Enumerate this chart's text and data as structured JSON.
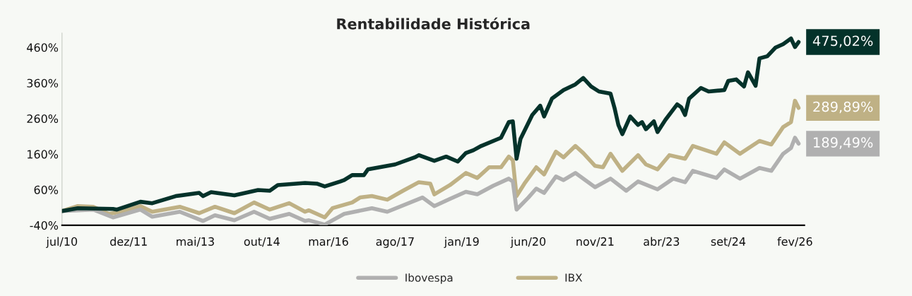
{
  "chart_data": {
    "type": "line",
    "title": "Rentabilidade Histórica",
    "xlim": [
      "2010-07",
      "2026-04-15"
    ],
    "ylim": [
      -40,
      500
    ],
    "xticks": [
      {
        "value": "2010-07",
        "label": "jul/10"
      },
      {
        "value": "2011-12",
        "label": "dez/11"
      },
      {
        "value": "2013-05",
        "label": "mai/13"
      },
      {
        "value": "2014-10",
        "label": "out/14"
      },
      {
        "value": "2016-03",
        "label": "mar/16"
      },
      {
        "value": "2017-08",
        "label": "ago/17"
      },
      {
        "value": "2019-01",
        "label": "jan/19"
      },
      {
        "value": "2020-06",
        "label": "jun/20"
      },
      {
        "value": "2021-11",
        "label": "nov/21"
      },
      {
        "value": "2023-04",
        "label": "abr/23"
      },
      {
        "value": "2024-09",
        "label": "set/24"
      },
      {
        "value": "2026-02",
        "label": "fev/26"
      }
    ],
    "yticks": [
      {
        "value": -40,
        "label": "-40%"
      },
      {
        "value": 60,
        "label": "60%"
      },
      {
        "value": 160,
        "label": "160%"
      },
      {
        "value": 260,
        "label": "260%"
      },
      {
        "value": 360,
        "label": "360%"
      },
      {
        "value": 460,
        "label": "460%"
      }
    ],
    "grid": false,
    "legend": "bottom",
    "marker": "none",
    "line_style": "solid",
    "series": [
      {
        "color": "#04322a",
        "x": [
          "2010-07",
          "2010-11",
          "2011-08",
          "2011-09",
          "2012-03",
          "2012-06",
          "2012-12",
          "2013-06",
          "2013-07",
          "2013-09",
          "2014-03",
          "2014-09",
          "2014-12",
          "2015-02",
          "2015-09",
          "2015-12",
          "2016-02",
          "2016-06",
          "2016-07",
          "2016-09",
          "2016-12",
          "2017-01",
          "2017-08",
          "2018-01",
          "2018-02",
          "2018-06",
          "2018-09",
          "2018-12",
          "2019-02",
          "2019-04",
          "2019-06",
          "2019-11",
          "2020-01",
          "2020-02",
          "2020-03",
          "2020-04",
          "2020-07",
          "2020-09",
          "2020-10",
          "2020-12",
          "2021-03",
          "2021-06",
          "2021-08",
          "2021-10",
          "2021-12",
          "2022-03",
          "2022-04",
          "2022-05",
          "2022-06",
          "2022-08",
          "2022-10",
          "2022-11",
          "2022-12",
          "2023-02",
          "2023-03",
          "2023-05",
          "2023-08",
          "2023-09",
          "2023-10",
          "2023-11",
          "2024-02",
          "2024-04",
          "2024-08",
          "2024-09",
          "2024-11",
          "2025-01",
          "2025-02",
          "2025-04",
          "2025-05",
          "2025-07",
          "2025-09",
          "2025-11",
          "2026-01",
          "2026-02",
          "2026-03"
        ],
        "values": [
          0,
          8,
          6,
          4,
          26,
          22,
          42,
          51,
          42,
          53,
          44,
          59,
          57,
          73,
          79,
          77,
          69,
          83,
          87,
          101,
          101,
          117,
          131,
          151,
          157,
          141,
          153,
          139,
          163,
          171,
          183,
          206,
          250,
          252,
          147,
          203,
          270,
          296,
          266,
          316,
          340,
          356,
          374,
          350,
          336,
          330,
          290,
          242,
          216,
          266,
          242,
          250,
          230,
          252,
          222,
          256,
          300,
          292,
          270,
          316,
          346,
          336,
          340,
          366,
          370,
          350,
          390,
          352,
          429,
          435,
          459,
          469,
          485,
          461,
          475.02
        ],
        "value_labels": [
          null,
          null,
          null,
          null,
          null,
          null,
          null,
          null,
          null,
          null,
          null,
          null,
          null,
          null,
          null,
          null,
          null,
          null,
          null,
          null,
          null,
          null,
          null,
          null,
          null,
          null,
          null,
          null,
          null,
          null,
          null,
          null,
          null,
          null,
          null,
          null,
          null,
          null,
          null,
          null,
          null,
          null,
          null,
          null,
          null,
          null,
          null,
          null,
          null,
          null,
          null,
          null,
          null,
          null,
          null,
          null,
          null,
          null,
          null,
          null,
          null,
          null,
          null,
          null,
          null,
          null,
          null,
          null,
          null,
          null,
          null,
          null,
          null,
          null,
          "475,02%"
        ]
      },
      {
        "name": "Ibovespa",
        "color": "#b0b0b0",
        "x": [
          "2010-07",
          "2011-03",
          "2011-08",
          "2012-03",
          "2012-06",
          "2013-01",
          "2013-07",
          "2013-10",
          "2014-03",
          "2014-08",
          "2014-12",
          "2015-05",
          "2015-09",
          "2015-10",
          "2016-02",
          "2016-07",
          "2017-02",
          "2017-06",
          "2018-03",
          "2018-06",
          "2018-10",
          "2019-02",
          "2019-05",
          "2019-09",
          "2020-01",
          "2020-02",
          "2020-03",
          "2020-06",
          "2020-08",
          "2020-10",
          "2021-01",
          "2021-03",
          "2021-06",
          "2021-11",
          "2022-03",
          "2022-07",
          "2022-10",
          "2023-03",
          "2023-07",
          "2023-10",
          "2023-12",
          "2024-06",
          "2024-08",
          "2024-12",
          "2025-05",
          "2025-08",
          "2025-11",
          "2026-01",
          "2026-02",
          "2026-03"
        ],
        "values": [
          0,
          4,
          -18,
          4,
          -16,
          -2,
          -28,
          -12,
          -26,
          -2,
          -22,
          -8,
          -28,
          -26,
          -38,
          -8,
          8,
          -2,
          38,
          14,
          34,
          54,
          47,
          71,
          91,
          83,
          4,
          38,
          63,
          51,
          97,
          87,
          107,
          67,
          91,
          57,
          83,
          61,
          91,
          81,
          113,
          93,
          117,
          91,
          121,
          113,
          161,
          177,
          206,
          189.49
        ],
        "value_labels": [
          null,
          null,
          null,
          null,
          null,
          null,
          null,
          null,
          null,
          null,
          null,
          null,
          null,
          null,
          null,
          null,
          null,
          null,
          null,
          null,
          null,
          null,
          null,
          null,
          null,
          null,
          null,
          null,
          null,
          null,
          null,
          null,
          null,
          null,
          null,
          null,
          null,
          null,
          null,
          null,
          null,
          null,
          null,
          null,
          null,
          null,
          null,
          null,
          null,
          "189,49%"
        ]
      },
      {
        "name": "IBX",
        "color": "#bfb185",
        "x": [
          "2010-07",
          "2010-11",
          "2011-03",
          "2011-07",
          "2011-10",
          "2012-03",
          "2012-06",
          "2013-01",
          "2013-06",
          "2013-10",
          "2014-03",
          "2014-08",
          "2014-12",
          "2015-05",
          "2015-09",
          "2015-10",
          "2016-02",
          "2016-04",
          "2016-09",
          "2016-11",
          "2017-02",
          "2017-06",
          "2017-10",
          "2018-02",
          "2018-05",
          "2018-06",
          "2018-10",
          "2019-02",
          "2019-05",
          "2019-08",
          "2019-11",
          "2020-01",
          "2020-02",
          "2020-03",
          "2020-05",
          "2020-08",
          "2020-10",
          "2021-01",
          "2021-03",
          "2021-06",
          "2021-08",
          "2021-11",
          "2022-01",
          "2022-03",
          "2022-06",
          "2022-10",
          "2022-12",
          "2023-03",
          "2023-06",
          "2023-10",
          "2023-12",
          "2024-06",
          "2024-08",
          "2024-12",
          "2025-05",
          "2025-08",
          "2025-11",
          "2026-01",
          "2026-02",
          "2026-03"
        ],
        "values": [
          0,
          14,
          12,
          -8,
          -2,
          14,
          -2,
          12,
          -6,
          12,
          -6,
          24,
          4,
          22,
          -2,
          2,
          -18,
          8,
          24,
          38,
          42,
          32,
          57,
          81,
          77,
          47,
          73,
          107,
          93,
          123,
          123,
          153,
          143,
          42,
          77,
          123,
          103,
          167,
          151,
          183,
          163,
          127,
          123,
          161,
          113,
          157,
          131,
          117,
          157,
          147,
          183,
          161,
          193,
          161,
          197,
          187,
          236,
          250,
          310,
          289.89
        ],
        "value_labels": [
          null,
          null,
          null,
          null,
          null,
          null,
          null,
          null,
          null,
          null,
          null,
          null,
          null,
          null,
          null,
          null,
          null,
          null,
          null,
          null,
          null,
          null,
          null,
          null,
          null,
          null,
          null,
          null,
          null,
          null,
          null,
          null,
          null,
          null,
          null,
          null,
          null,
          null,
          null,
          null,
          null,
          null,
          null,
          null,
          null,
          null,
          null,
          null,
          null,
          null,
          null,
          null,
          null,
          null,
          null,
          null,
          null,
          null,
          null,
          "289,89%"
        ]
      }
    ]
  }
}
